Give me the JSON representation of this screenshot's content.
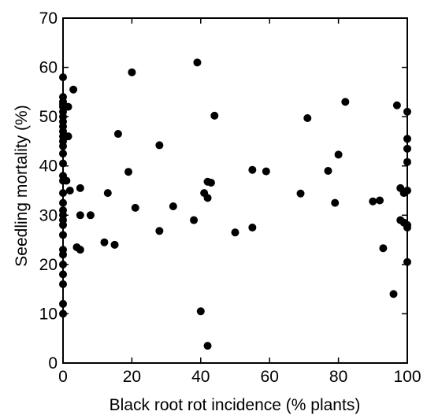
{
  "chart_data": {
    "type": "scatter",
    "title": "",
    "xlabel": "Black root rot incidence (% plants)",
    "ylabel": "Seedling mortality (%)",
    "xlim": [
      0,
      100
    ],
    "ylim": [
      0,
      70
    ],
    "xticks": [
      0,
      20,
      40,
      60,
      80,
      100
    ],
    "yticks": [
      0,
      10,
      20,
      30,
      40,
      50,
      60,
      70
    ],
    "grid": false,
    "marker_color": "#000000",
    "points": [
      {
        "x": 0,
        "y": 58
      },
      {
        "x": 0,
        "y": 54
      },
      {
        "x": 0,
        "y": 53
      },
      {
        "x": 0,
        "y": 52.5
      },
      {
        "x": 0,
        "y": 52
      },
      {
        "x": 0,
        "y": 51
      },
      {
        "x": 0,
        "y": 50
      },
      {
        "x": 0,
        "y": 49
      },
      {
        "x": 0,
        "y": 48
      },
      {
        "x": 0,
        "y": 47
      },
      {
        "x": 0,
        "y": 46
      },
      {
        "x": 0,
        "y": 45
      },
      {
        "x": 0,
        "y": 44
      },
      {
        "x": 0,
        "y": 42.5
      },
      {
        "x": 0,
        "y": 40.5
      },
      {
        "x": 0,
        "y": 38
      },
      {
        "x": 0,
        "y": 37
      },
      {
        "x": 0,
        "y": 34.5
      },
      {
        "x": 0,
        "y": 32.5
      },
      {
        "x": 0,
        "y": 31
      },
      {
        "x": 0,
        "y": 30
      },
      {
        "x": 0,
        "y": 29
      },
      {
        "x": 0,
        "y": 28
      },
      {
        "x": 0,
        "y": 26
      },
      {
        "x": 0,
        "y": 23
      },
      {
        "x": 0,
        "y": 22
      },
      {
        "x": 0,
        "y": 20
      },
      {
        "x": 0,
        "y": 18
      },
      {
        "x": 0,
        "y": 16
      },
      {
        "x": 0,
        "y": 12
      },
      {
        "x": 0,
        "y": 10
      },
      {
        "x": 1,
        "y": 37
      },
      {
        "x": 1.5,
        "y": 52
      },
      {
        "x": 1.5,
        "y": 46
      },
      {
        "x": 2,
        "y": 35
      },
      {
        "x": 3,
        "y": 55.5
      },
      {
        "x": 4,
        "y": 23.5
      },
      {
        "x": 5,
        "y": 35.5
      },
      {
        "x": 5,
        "y": 30
      },
      {
        "x": 5,
        "y": 23
      },
      {
        "x": 8,
        "y": 30
      },
      {
        "x": 12,
        "y": 24.5
      },
      {
        "x": 13,
        "y": 34.5
      },
      {
        "x": 15,
        "y": 24
      },
      {
        "x": 16,
        "y": 46.5
      },
      {
        "x": 19,
        "y": 38.8
      },
      {
        "x": 20,
        "y": 59
      },
      {
        "x": 21,
        "y": 31.5
      },
      {
        "x": 28,
        "y": 44.2
      },
      {
        "x": 28,
        "y": 26.8
      },
      {
        "x": 32,
        "y": 31.8
      },
      {
        "x": 38,
        "y": 29
      },
      {
        "x": 39,
        "y": 61
      },
      {
        "x": 40,
        "y": 10.5
      },
      {
        "x": 41,
        "y": 34.5
      },
      {
        "x": 42,
        "y": 36.8
      },
      {
        "x": 42,
        "y": 33.5
      },
      {
        "x": 42,
        "y": 3.5
      },
      {
        "x": 43,
        "y": 36.6
      },
      {
        "x": 44,
        "y": 50.2
      },
      {
        "x": 50,
        "y": 26.5
      },
      {
        "x": 55,
        "y": 39.2
      },
      {
        "x": 55,
        "y": 27.5
      },
      {
        "x": 59,
        "y": 38.9
      },
      {
        "x": 69,
        "y": 34.4
      },
      {
        "x": 71,
        "y": 49.7
      },
      {
        "x": 77,
        "y": 39
      },
      {
        "x": 79,
        "y": 32.5
      },
      {
        "x": 80,
        "y": 42.3
      },
      {
        "x": 82,
        "y": 53
      },
      {
        "x": 90,
        "y": 32.8
      },
      {
        "x": 92,
        "y": 33
      },
      {
        "x": 93,
        "y": 23.3
      },
      {
        "x": 96,
        "y": 14
      },
      {
        "x": 97,
        "y": 52.3
      },
      {
        "x": 98,
        "y": 35.5
      },
      {
        "x": 98,
        "y": 29
      },
      {
        "x": 99,
        "y": 34.5
      },
      {
        "x": 99,
        "y": 28.5
      },
      {
        "x": 100,
        "y": 51
      },
      {
        "x": 100,
        "y": 45.5
      },
      {
        "x": 100,
        "y": 43.5
      },
      {
        "x": 100,
        "y": 40.8
      },
      {
        "x": 100,
        "y": 35
      },
      {
        "x": 100,
        "y": 28
      },
      {
        "x": 100,
        "y": 27.5
      },
      {
        "x": 100,
        "y": 20.5
      }
    ]
  }
}
